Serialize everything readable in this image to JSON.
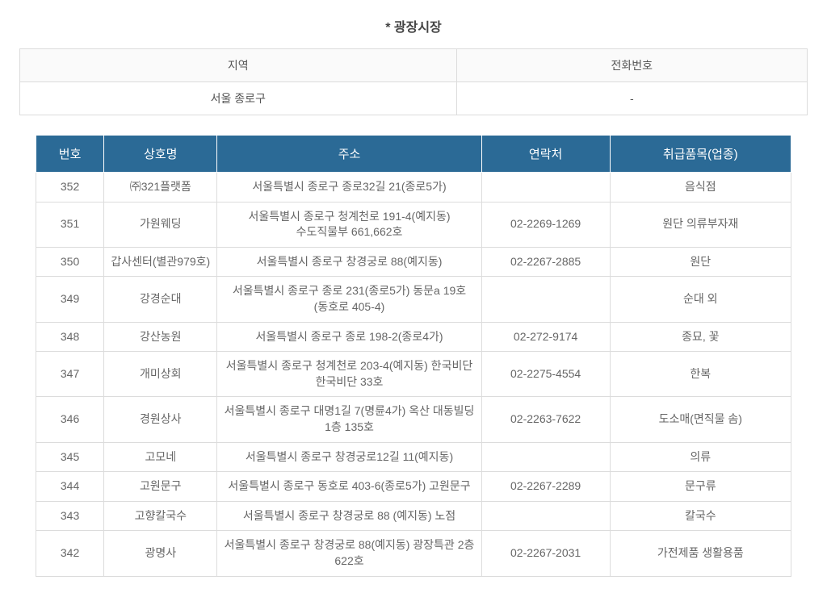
{
  "title": "* 광장시장",
  "info": {
    "columns": [
      "지역",
      "전화번호"
    ],
    "row": [
      "서울 종로구",
      "-"
    ]
  },
  "table": {
    "header_bg": "#2b6a96",
    "header_color": "#ffffff",
    "border_color": "#dcdcdc",
    "columns": [
      "번호",
      "상호명",
      "주소",
      "연락처",
      "취급품목(업종)"
    ],
    "rows": [
      {
        "no": "352",
        "name": "㈜321플랫폼",
        "addr": "서울특별시 종로구 종로32길 21(종로5가)",
        "tel": "",
        "cat": "음식점"
      },
      {
        "no": "351",
        "name": "가원웨딩",
        "addr": "서울특별시 종로구 청계천로 191-4(예지동) 수도직물부 661,662호",
        "tel": "02-2269-1269",
        "cat": "원단 의류부자재"
      },
      {
        "no": "350",
        "name": "갑사센터(별관979호)",
        "addr": "서울특별시 종로구 창경궁로 88(예지동)",
        "tel": "02-2267-2885",
        "cat": "원단"
      },
      {
        "no": "349",
        "name": "강경순대",
        "addr": "서울특별시 종로구 종로 231(종로5가) 동문a 19호(동호로 405-4)",
        "tel": "",
        "cat": "순대 외"
      },
      {
        "no": "348",
        "name": "강산농원",
        "addr": "서울특별시 종로구 종로 198-2(종로4가)",
        "tel": "02-272-9174",
        "cat": "종묘, 꽃"
      },
      {
        "no": "347",
        "name": "개미상회",
        "addr": "서울특별시 종로구 청계천로 203-4(예지동) 한국비단 한국비단 33호",
        "tel": "02-2275-4554",
        "cat": "한복"
      },
      {
        "no": "346",
        "name": "경원상사",
        "addr": "서울특별시 종로구 대명1길 7(명륜4가) 옥산 대동빌딩 1층 135호",
        "tel": "02-2263-7622",
        "cat": "도소매(면직물 솜)"
      },
      {
        "no": "345",
        "name": "고모네",
        "addr": "서울특별시 종로구 창경궁로12길 11(예지동)",
        "tel": "",
        "cat": "의류"
      },
      {
        "no": "344",
        "name": "고원문구",
        "addr": "서울특별시 종로구 동호로 403-6(종로5가) 고원문구",
        "tel": "02-2267-2289",
        "cat": "문구류"
      },
      {
        "no": "343",
        "name": "고향칼국수",
        "addr": "서울특별시 종로구 창경궁로 88 (예지동) 노점",
        "tel": "",
        "cat": "칼국수"
      },
      {
        "no": "342",
        "name": "광명사",
        "addr": "서울특별시 종로구 창경궁로 88(예지동) 광장특관 2층 622호",
        "tel": "02-2267-2031",
        "cat": "가전제품 생활용품"
      }
    ]
  }
}
